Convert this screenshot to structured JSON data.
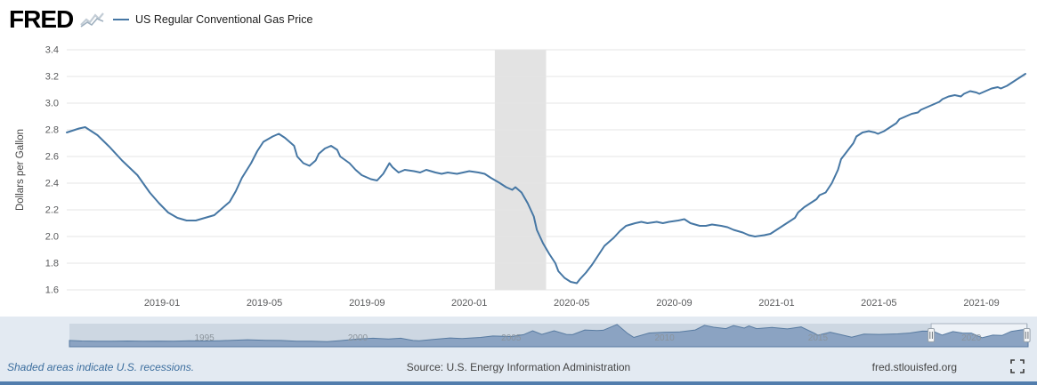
{
  "header": {
    "logo_text": "FRED",
    "legend_label": "US Regular Conventional Gas Price"
  },
  "footer": {
    "recession_note": "Shaded areas indicate U.S. recessions.",
    "source": "Source: U.S. Energy Information Administration",
    "site": "fred.stlouisfed.org"
  },
  "colors": {
    "line": "#4677a4",
    "recession_band": "#e3e3e3",
    "gridline": "#e6e6e6",
    "nav_fill": "#8ba3c2",
    "nav_stroke": "#587ba1",
    "nav_track": "#cdd7e2",
    "nav_selection_bg": "#eef2f7",
    "nav_outline": "#a9b4c0",
    "handle_fill": "#f5f6f7",
    "handle_stroke": "#98a2ac",
    "handle_grip": "#6d757d",
    "accent_bar": "#527dad",
    "page_bg": "#e3eaf2"
  },
  "chart_data": [
    {
      "type": "line",
      "title": "US Regular Conventional Gas Price",
      "ylabel": "Dollars per Gallon",
      "ylim": [
        1.6,
        3.4
      ],
      "yticks": [
        1.6,
        1.8,
        2.0,
        2.2,
        2.4,
        2.6,
        2.8,
        3.0,
        3.2,
        3.4
      ],
      "x_type": "decimal_year",
      "xlim": [
        2018.69,
        2021.81
      ],
      "xticks": [
        {
          "value": 2019.0,
          "label": "2019-01"
        },
        {
          "value": 2019.333,
          "label": "2019-05"
        },
        {
          "value": 2019.667,
          "label": "2019-09"
        },
        {
          "value": 2020.0,
          "label": "2020-01"
        },
        {
          "value": 2020.333,
          "label": "2020-05"
        },
        {
          "value": 2020.667,
          "label": "2020-09"
        },
        {
          "value": 2021.0,
          "label": "2021-01"
        },
        {
          "value": 2021.333,
          "label": "2021-05"
        },
        {
          "value": 2021.667,
          "label": "2021-09"
        }
      ],
      "grid": true,
      "legend_position": "top-left",
      "recession_bands": [
        {
          "from": 2020.083,
          "to": 2020.25
        }
      ],
      "points": [
        [
          2018.69,
          2.78
        ],
        [
          2018.73,
          2.81
        ],
        [
          2018.75,
          2.82
        ],
        [
          2018.79,
          2.76
        ],
        [
          2018.83,
          2.67
        ],
        [
          2018.87,
          2.57
        ],
        [
          2018.92,
          2.46
        ],
        [
          2018.96,
          2.33
        ],
        [
          2018.99,
          2.25
        ],
        [
          2019.02,
          2.18
        ],
        [
          2019.05,
          2.14
        ],
        [
          2019.08,
          2.12
        ],
        [
          2019.11,
          2.12
        ],
        [
          2019.14,
          2.14
        ],
        [
          2019.17,
          2.16
        ],
        [
          2019.19,
          2.2
        ],
        [
          2019.22,
          2.26
        ],
        [
          2019.24,
          2.34
        ],
        [
          2019.26,
          2.44
        ],
        [
          2019.29,
          2.55
        ],
        [
          2019.31,
          2.64
        ],
        [
          2019.33,
          2.71
        ],
        [
          2019.36,
          2.75
        ],
        [
          2019.38,
          2.77
        ],
        [
          2019.4,
          2.74
        ],
        [
          2019.43,
          2.68
        ],
        [
          2019.44,
          2.6
        ],
        [
          2019.46,
          2.55
        ],
        [
          2019.48,
          2.53
        ],
        [
          2019.5,
          2.57
        ],
        [
          2019.51,
          2.62
        ],
        [
          2019.53,
          2.66
        ],
        [
          2019.55,
          2.68
        ],
        [
          2019.57,
          2.65
        ],
        [
          2019.58,
          2.6
        ],
        [
          2019.61,
          2.55
        ],
        [
          2019.63,
          2.5
        ],
        [
          2019.65,
          2.46
        ],
        [
          2019.68,
          2.43
        ],
        [
          2019.7,
          2.42
        ],
        [
          2019.72,
          2.47
        ],
        [
          2019.74,
          2.55
        ],
        [
          2019.75,
          2.52
        ],
        [
          2019.77,
          2.48
        ],
        [
          2019.79,
          2.5
        ],
        [
          2019.82,
          2.49
        ],
        [
          2019.84,
          2.48
        ],
        [
          2019.86,
          2.5
        ],
        [
          2019.89,
          2.48
        ],
        [
          2019.91,
          2.47
        ],
        [
          2019.93,
          2.48
        ],
        [
          2019.96,
          2.47
        ],
        [
          2019.98,
          2.48
        ],
        [
          2020.0,
          2.49
        ],
        [
          2020.03,
          2.48
        ],
        [
          2020.05,
          2.47
        ],
        [
          2020.07,
          2.44
        ],
        [
          2020.1,
          2.4
        ],
        [
          2020.12,
          2.37
        ],
        [
          2020.14,
          2.35
        ],
        [
          2020.15,
          2.37
        ],
        [
          2020.17,
          2.33
        ],
        [
          2020.19,
          2.25
        ],
        [
          2020.21,
          2.15
        ],
        [
          2020.22,
          2.05
        ],
        [
          2020.24,
          1.95
        ],
        [
          2020.26,
          1.87
        ],
        [
          2020.28,
          1.8
        ],
        [
          2020.29,
          1.74
        ],
        [
          2020.31,
          1.69
        ],
        [
          2020.33,
          1.66
        ],
        [
          2020.35,
          1.65
        ],
        [
          2020.36,
          1.68
        ],
        [
          2020.38,
          1.73
        ],
        [
          2020.4,
          1.79
        ],
        [
          2020.42,
          1.86
        ],
        [
          2020.44,
          1.93
        ],
        [
          2020.47,
          1.99
        ],
        [
          2020.49,
          2.04
        ],
        [
          2020.51,
          2.08
        ],
        [
          2020.54,
          2.1
        ],
        [
          2020.56,
          2.11
        ],
        [
          2020.58,
          2.1
        ],
        [
          2020.61,
          2.11
        ],
        [
          2020.63,
          2.1
        ],
        [
          2020.65,
          2.11
        ],
        [
          2020.68,
          2.12
        ],
        [
          2020.7,
          2.13
        ],
        [
          2020.72,
          2.1
        ],
        [
          2020.75,
          2.08
        ],
        [
          2020.77,
          2.08
        ],
        [
          2020.79,
          2.09
        ],
        [
          2020.82,
          2.08
        ],
        [
          2020.84,
          2.07
        ],
        [
          2020.86,
          2.05
        ],
        [
          2020.89,
          2.03
        ],
        [
          2020.91,
          2.01
        ],
        [
          2020.93,
          2.0
        ],
        [
          2020.96,
          2.01
        ],
        [
          2020.98,
          2.02
        ],
        [
          2021.0,
          2.05
        ],
        [
          2021.02,
          2.08
        ],
        [
          2021.04,
          2.11
        ],
        [
          2021.06,
          2.14
        ],
        [
          2021.07,
          2.18
        ],
        [
          2021.09,
          2.22
        ],
        [
          2021.11,
          2.25
        ],
        [
          2021.13,
          2.28
        ],
        [
          2021.14,
          2.31
        ],
        [
          2021.16,
          2.33
        ],
        [
          2021.18,
          2.4
        ],
        [
          2021.2,
          2.5
        ],
        [
          2021.21,
          2.58
        ],
        [
          2021.23,
          2.64
        ],
        [
          2021.25,
          2.7
        ],
        [
          2021.26,
          2.75
        ],
        [
          2021.28,
          2.78
        ],
        [
          2021.3,
          2.79
        ],
        [
          2021.32,
          2.78
        ],
        [
          2021.33,
          2.77
        ],
        [
          2021.35,
          2.79
        ],
        [
          2021.37,
          2.82
        ],
        [
          2021.39,
          2.85
        ],
        [
          2021.4,
          2.88
        ],
        [
          2021.42,
          2.9
        ],
        [
          2021.44,
          2.92
        ],
        [
          2021.46,
          2.93
        ],
        [
          2021.47,
          2.95
        ],
        [
          2021.49,
          2.97
        ],
        [
          2021.51,
          2.99
        ],
        [
          2021.53,
          3.01
        ],
        [
          2021.54,
          3.03
        ],
        [
          2021.56,
          3.05
        ],
        [
          2021.58,
          3.06
        ],
        [
          2021.6,
          3.05
        ],
        [
          2021.61,
          3.07
        ],
        [
          2021.63,
          3.09
        ],
        [
          2021.65,
          3.08
        ],
        [
          2021.66,
          3.07
        ],
        [
          2021.68,
          3.09
        ],
        [
          2021.7,
          3.11
        ],
        [
          2021.72,
          3.12
        ],
        [
          2021.73,
          3.11
        ],
        [
          2021.75,
          3.13
        ],
        [
          2021.77,
          3.16
        ],
        [
          2021.79,
          3.19
        ],
        [
          2021.81,
          3.22
        ]
      ]
    },
    {
      "type": "area",
      "role": "range-selector",
      "xlim": [
        1990.6,
        2021.85
      ],
      "ylim": [
        0,
        4.2
      ],
      "year_labels": [
        1995,
        2000,
        2005,
        2010,
        2015,
        2020
      ],
      "selection": {
        "from": 2018.69,
        "to": 2021.81
      },
      "points": [
        [
          1990.6,
          1.15
        ],
        [
          1991.0,
          1.05
        ],
        [
          1991.5,
          1.0
        ],
        [
          1992.0,
          1.02
        ],
        [
          1992.5,
          1.05
        ],
        [
          1993.0,
          1.0
        ],
        [
          1993.5,
          1.03
        ],
        [
          1994.0,
          1.0
        ],
        [
          1994.5,
          1.08
        ],
        [
          1995.0,
          1.05
        ],
        [
          1995.5,
          1.1
        ],
        [
          1996.0,
          1.2
        ],
        [
          1996.4,
          1.28
        ],
        [
          1997.0,
          1.18
        ],
        [
          1997.5,
          1.15
        ],
        [
          1998.0,
          1.0
        ],
        [
          1998.5,
          1.0
        ],
        [
          1999.0,
          0.92
        ],
        [
          1999.5,
          1.15
        ],
        [
          2000.0,
          1.4
        ],
        [
          2000.5,
          1.55
        ],
        [
          2001.0,
          1.4
        ],
        [
          2001.4,
          1.55
        ],
        [
          2001.8,
          1.15
        ],
        [
          2002.0,
          1.1
        ],
        [
          2002.5,
          1.35
        ],
        [
          2003.0,
          1.6
        ],
        [
          2003.4,
          1.5
        ],
        [
          2004.0,
          1.7
        ],
        [
          2004.4,
          1.95
        ],
        [
          2004.8,
          1.9
        ],
        [
          2005.0,
          1.85
        ],
        [
          2005.4,
          2.2
        ],
        [
          2005.7,
          2.9
        ],
        [
          2006.0,
          2.25
        ],
        [
          2006.4,
          2.9
        ],
        [
          2006.8,
          2.25
        ],
        [
          2007.0,
          2.2
        ],
        [
          2007.4,
          3.05
        ],
        [
          2007.8,
          2.95
        ],
        [
          2008.0,
          3.0
        ],
        [
          2008.45,
          4.05
        ],
        [
          2008.8,
          2.4
        ],
        [
          2009.0,
          1.7
        ],
        [
          2009.5,
          2.5
        ],
        [
          2010.0,
          2.65
        ],
        [
          2010.5,
          2.7
        ],
        [
          2011.0,
          3.05
        ],
        [
          2011.3,
          3.9
        ],
        [
          2011.6,
          3.55
        ],
        [
          2012.0,
          3.3
        ],
        [
          2012.25,
          3.85
        ],
        [
          2012.6,
          3.4
        ],
        [
          2012.75,
          3.8
        ],
        [
          2013.0,
          3.3
        ],
        [
          2013.5,
          3.5
        ],
        [
          2014.0,
          3.25
        ],
        [
          2014.45,
          3.6
        ],
        [
          2014.9,
          2.4
        ],
        [
          2015.0,
          2.1
        ],
        [
          2015.4,
          2.65
        ],
        [
          2015.9,
          2.0
        ],
        [
          2016.1,
          1.75
        ],
        [
          2016.5,
          2.3
        ],
        [
          2017.0,
          2.25
        ],
        [
          2017.6,
          2.35
        ],
        [
          2018.0,
          2.5
        ],
        [
          2018.4,
          2.85
        ],
        [
          2018.75,
          2.82
        ],
        [
          2019.05,
          2.12
        ],
        [
          2019.4,
          2.77
        ],
        [
          2019.7,
          2.5
        ],
        [
          2020.0,
          2.48
        ],
        [
          2020.35,
          1.65
        ],
        [
          2020.7,
          2.12
        ],
        [
          2021.0,
          2.05
        ],
        [
          2021.3,
          2.79
        ],
        [
          2021.6,
          3.05
        ],
        [
          2021.85,
          3.22
        ]
      ]
    }
  ]
}
